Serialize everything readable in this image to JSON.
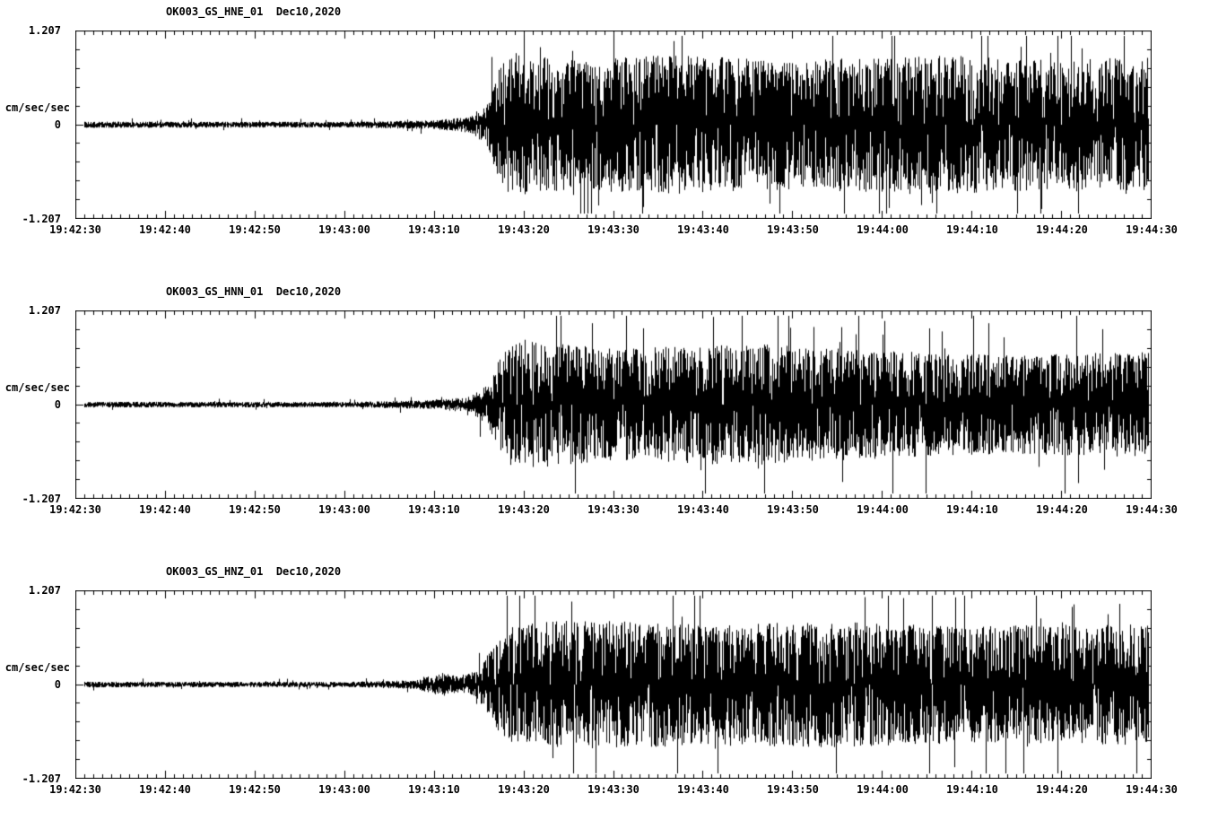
{
  "page": {
    "background": "#ffffff",
    "trace_color": "#000000",
    "station": "OK003",
    "network": "GS",
    "date": "Dec10,2020"
  },
  "chart_data": [
    {
      "type": "line",
      "title": "OK003_GS_HNE_01  Dec10,2020",
      "ylabel": "cm/sec/sec",
      "ylim": [
        -1.207,
        1.207
      ],
      "ytick_labels": [
        "1.207",
        "0",
        "-1.207"
      ],
      "x_tick_labels": [
        "19:42:30",
        "19:42:40",
        "19:42:50",
        "19:43:00",
        "19:43:10",
        "19:43:20",
        "19:43:30",
        "19:43:40",
        "19:43:50",
        "19:44:00",
        "19:44:10",
        "19:44:20",
        "19:44:30"
      ],
      "duration_seconds": 120,
      "grid": false,
      "legend": "none",
      "envelope": [
        [
          0,
          0.035
        ],
        [
          30,
          0.032
        ],
        [
          40,
          0.05
        ],
        [
          44,
          0.09
        ],
        [
          46,
          0.25
        ],
        [
          47.5,
          0.7
        ],
        [
          49,
          0.8
        ],
        [
          55,
          0.72
        ],
        [
          65,
          0.78
        ],
        [
          80,
          0.72
        ],
        [
          95,
          0.78
        ],
        [
          110,
          0.72
        ],
        [
          120,
          0.78
        ]
      ],
      "seed": 101
    },
    {
      "type": "line",
      "title": "OK003_GS_HNN_01  Dec10,2020",
      "ylabel": "cm/sec/sec",
      "ylim": [
        -1.207,
        1.207
      ],
      "ytick_labels": [
        "1.207",
        "0",
        "-1.207"
      ],
      "x_tick_labels": [
        "19:42:30",
        "19:42:40",
        "19:42:50",
        "19:43:00",
        "19:43:10",
        "19:43:20",
        "19:43:30",
        "19:43:40",
        "19:43:50",
        "19:44:00",
        "19:44:10",
        "19:44:20",
        "19:44:30"
      ],
      "duration_seconds": 120,
      "grid": false,
      "legend": "none",
      "envelope": [
        [
          0,
          0.032
        ],
        [
          30,
          0.03
        ],
        [
          40,
          0.05
        ],
        [
          44,
          0.09
        ],
        [
          46,
          0.22
        ],
        [
          47.5,
          0.65
        ],
        [
          50,
          0.72
        ],
        [
          60,
          0.62
        ],
        [
          75,
          0.68
        ],
        [
          90,
          0.6
        ],
        [
          105,
          0.55
        ],
        [
          120,
          0.6
        ]
      ],
      "seed": 202
    },
    {
      "type": "line",
      "title": "OK003_GS_HNZ_01  Dec10,2020",
      "ylabel": "cm/sec/sec",
      "ylim": [
        -1.207,
        1.207
      ],
      "ytick_labels": [
        "1.207",
        "0",
        "-1.207"
      ],
      "x_tick_labels": [
        "19:42:30",
        "19:42:40",
        "19:42:50",
        "19:43:00",
        "19:43:10",
        "19:43:20",
        "19:43:30",
        "19:43:40",
        "19:43:50",
        "19:44:00",
        "19:44:10",
        "19:44:20",
        "19:44:30"
      ],
      "duration_seconds": 120,
      "grid": false,
      "legend": "none",
      "envelope": [
        [
          0,
          0.032
        ],
        [
          30,
          0.03
        ],
        [
          38,
          0.05
        ],
        [
          41,
          0.14
        ],
        [
          43,
          0.08
        ],
        [
          45,
          0.18
        ],
        [
          47,
          0.5
        ],
        [
          49,
          0.68
        ],
        [
          55,
          0.72
        ],
        [
          70,
          0.68
        ],
        [
          85,
          0.7
        ],
        [
          100,
          0.65
        ],
        [
          120,
          0.68
        ]
      ],
      "seed": 303
    }
  ]
}
